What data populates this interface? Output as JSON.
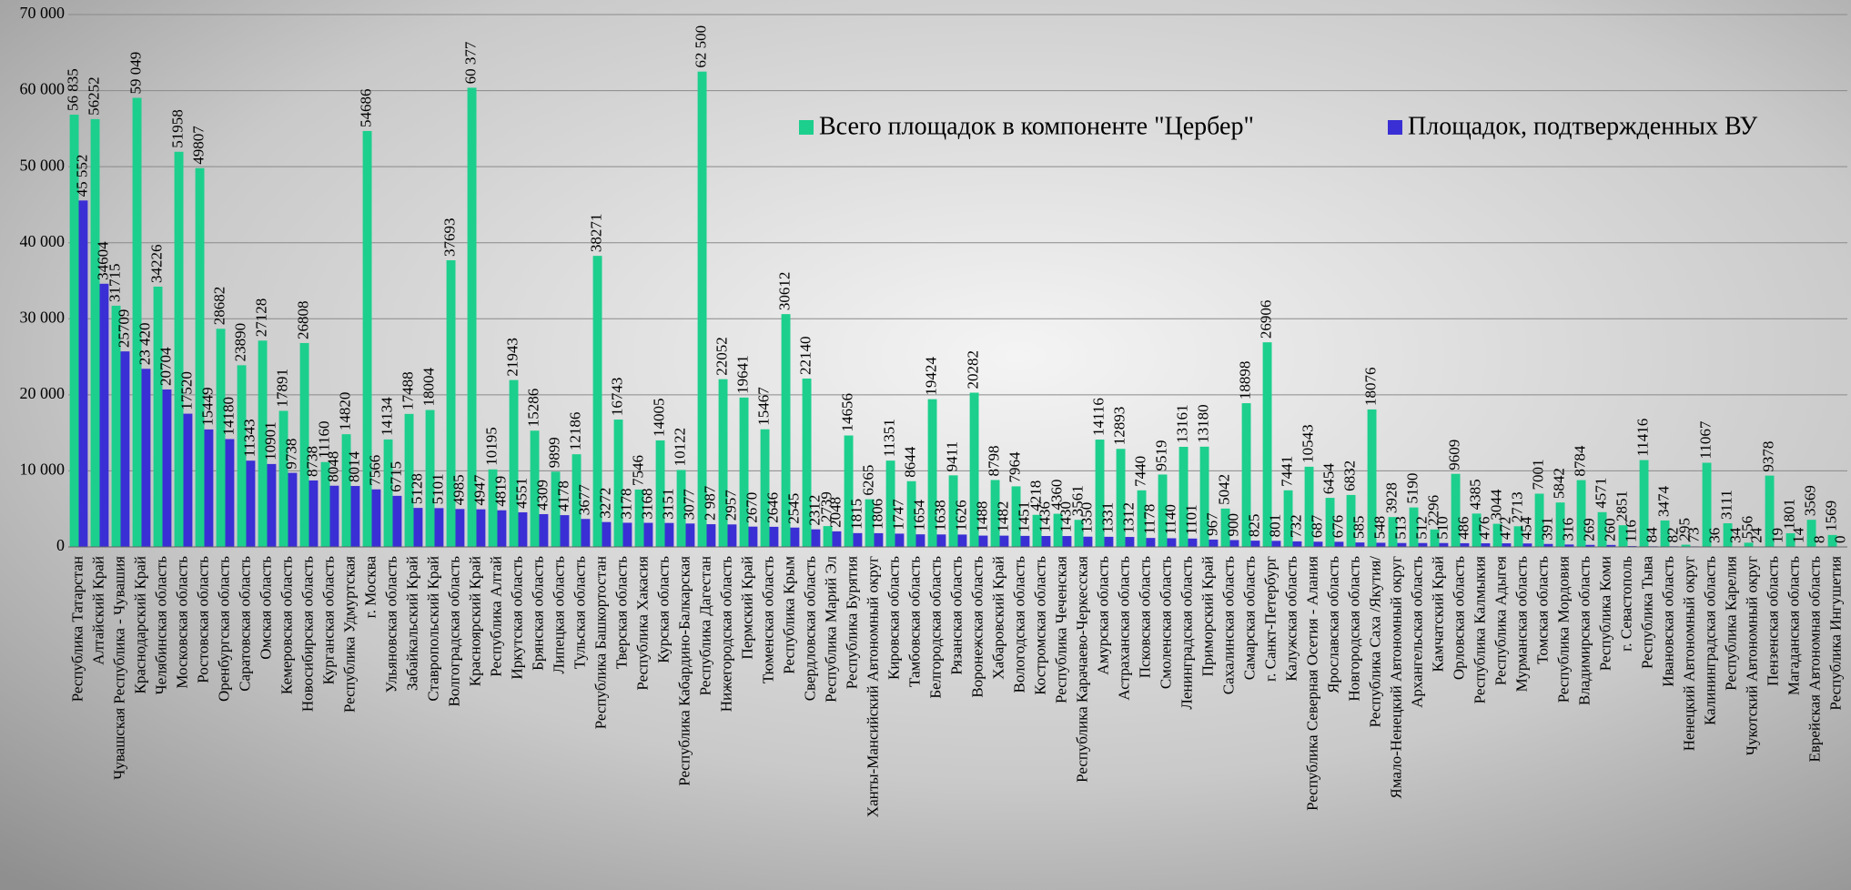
{
  "chart_data": {
    "type": "bar",
    "categories": [
      "Республика Татарстан",
      "Алтайский Край",
      "Чувашская Республика - Чувашия",
      "Краснодарский Край",
      "Челябинская область",
      "Московская область",
      "Ростовская область",
      "Оренбургская область",
      "Саратовская область",
      "Омская область",
      "Кемеровская область",
      "Новосибирская область",
      "Курганская область",
      "Республика Удмуртская",
      "г. Москва",
      "Ульяновская область",
      "Забайкальский Край",
      "Ставропольский Край",
      "Волгоградская область",
      "Красноярский Край",
      "Республика Алтай",
      "Иркутская область",
      "Брянская область",
      "Липецкая область",
      "Тульская область",
      "Республика Башкортостан",
      "Тверская область",
      "Республика Хакасия",
      "Курская область",
      "Республика Кабардино-Балкарская",
      "Республика Дагестан",
      "Нижегородская область",
      "Пермский Край",
      "Тюменская область",
      "Республика Крым",
      "Свердловская область",
      "Республика Марий Эл",
      "Республика Бурятия",
      "Ханты-Мансийский Автономный округ",
      "Кировская область",
      "Тамбовская область",
      "Белгородская область",
      "Рязанская область",
      "Воронежская область",
      "Хабаровский Край",
      "Вологодская область",
      "Костромская область",
      "Республика Чеченская",
      "Республика Карачаево-Черкесская",
      "Амурская область",
      "Астраханская область",
      "Псковская область",
      "Смоленская область",
      "Ленинградская область",
      "Приморский Край",
      "Сахалинская область",
      "Самарская область",
      "г. Санкт-Петербург",
      "Калужская область",
      "Республика Северная Осетия - Алания",
      "Ярославская область",
      "Новгородская область",
      "Республика Саха /Якутия/",
      "Ямало-Ненецкий Автономный округ",
      "Архангельская область",
      "Камчатский Край",
      "Орловская область",
      "Республика Калмыкия",
      "Республика Адыгея",
      "Мурманская область",
      "Томская область",
      "Республика Мордовия",
      "Владимирская область",
      "Республика Коми",
      "г. Севастополь",
      "Республика Тыва",
      "Ивановская область",
      "Ненецкий Автономный округ",
      "Калининградская область",
      "Республика Карелия",
      "Чукотский Автономный округ",
      "Пензенская область",
      "Магаданская область",
      "Еврейская Автономная область",
      "Республика Ингушетия"
    ],
    "series": [
      {
        "name": "Всего площадок в компоненте \"Цербер\"",
        "color": "#1ccf8d",
        "values": [
          56835,
          56252,
          31715,
          59049,
          34226,
          51958,
          49807,
          28682,
          23890,
          27128,
          17891,
          26808,
          11160,
          14820,
          54686,
          14134,
          17488,
          18004,
          37693,
          60377,
          10195,
          21943,
          15286,
          9899,
          12186,
          38271,
          16743,
          7546,
          14005,
          10122,
          62500,
          22052,
          19641,
          15467,
          30612,
          22140,
          2739,
          14656,
          6265,
          11351,
          8644,
          19424,
          9411,
          20282,
          8798,
          7964,
          4218,
          4360,
          3561,
          14116,
          12893,
          7440,
          9519,
          13161,
          13180,
          5042,
          18898,
          26906,
          7441,
          10543,
          6454,
          6832,
          18076,
          3928,
          5190,
          2296,
          9609,
          4385,
          3044,
          2713,
          7001,
          5842,
          8784,
          4571,
          2851,
          11416,
          3474,
          295,
          11067,
          3111,
          556,
          9378,
          1801,
          3569,
          1569
        ],
        "value_labels": [
          "56 835",
          "56252",
          "31715",
          "59 049",
          "34226",
          "51958",
          "49807",
          "28682",
          "23890",
          "27128",
          "17891",
          "26808",
          "11160",
          "14820",
          "54686",
          "14134",
          "17488",
          "18004",
          "37693",
          "60 377",
          "10195",
          "21943",
          "15286",
          "9899",
          "12186",
          "38271",
          "16743",
          "7546",
          "14005",
          "10122",
          "62 500",
          "22052",
          "19641",
          "15467",
          "30612",
          "22140",
          "2739",
          "14656",
          "6265",
          "11351",
          "8644",
          "19424",
          "9411",
          "20282",
          "8798",
          "7964",
          "4218",
          "4360",
          "3561",
          "14116",
          "12893",
          "7440",
          "9519",
          "13161",
          "13180",
          "5042",
          "18898",
          "26906",
          "7441",
          "10543",
          "6454",
          "6832",
          "18076",
          "3928",
          "5190",
          "2296",
          "9609",
          "4385",
          "3044",
          "2713",
          "7001",
          "5842",
          "8784",
          "4571",
          "2851",
          "11416",
          "3474",
          "295",
          "11067",
          "3111",
          "556",
          "9378",
          "1801",
          "3569",
          "1569"
        ]
      },
      {
        "name": "Площадок, подтвержденных ВУ",
        "color": "#3a2fd4",
        "values": [
          45552,
          34604,
          25709,
          23420,
          20704,
          17520,
          15449,
          14180,
          11343,
          10901,
          9738,
          8738,
          8048,
          8014,
          7566,
          6715,
          5128,
          5101,
          4985,
          4947,
          4819,
          4551,
          4309,
          4178,
          3677,
          3272,
          3178,
          3168,
          3151,
          3077,
          2987,
          2957,
          2670,
          2646,
          2545,
          2312,
          2048,
          1815,
          1806,
          1747,
          1654,
          1638,
          1626,
          1488,
          1482,
          1451,
          1436,
          1430,
          1350,
          1331,
          1312,
          1178,
          1140,
          1101,
          967,
          900,
          825,
          801,
          732,
          687,
          676,
          585,
          548,
          513,
          512,
          510,
          486,
          476,
          472,
          454,
          391,
          316,
          269,
          260,
          116,
          84,
          82,
          73,
          36,
          34,
          24,
          19,
          14,
          8,
          0
        ],
        "value_labels": [
          "45 552",
          "34604",
          "25709",
          "23 420",
          "20704",
          "17520",
          "15449",
          "14180",
          "11343",
          "10901",
          "9738",
          "8738",
          "8048",
          "8014",
          "7566",
          "6715",
          "5128",
          "5101",
          "4985",
          "4947",
          "4819",
          "4551",
          "4309",
          "4178",
          "3677",
          "3272",
          "3178",
          "3168",
          "3151",
          "3077",
          "2 987",
          "2957",
          "2670",
          "2646",
          "2545",
          "2312",
          "2048",
          "1815",
          "1806",
          "1747",
          "1654",
          "1638",
          "1626",
          "1488",
          "1482",
          "1451",
          "1436",
          "1430",
          "1350",
          "1331",
          "1312",
          "1178",
          "1140",
          "1101",
          "967",
          "900",
          "825",
          "801",
          "732",
          "687",
          "676",
          "585",
          "548",
          "513",
          "512",
          "510",
          "486",
          "476",
          "472",
          "454",
          "391",
          "316",
          "269",
          "260",
          "116",
          "84",
          "82",
          "73",
          "36",
          "34",
          "24",
          "19",
          "14",
          "8",
          "0"
        ]
      }
    ],
    "ylim": [
      0,
      70000
    ],
    "yticks": [
      0,
      {
        "value": 10000,
        "label": "10 000"
      },
      {
        "value": 20000,
        "label": "20 000"
      },
      {
        "value": 30000,
        "label": "30 000"
      },
      {
        "value": 40000,
        "label": "40 000"
      },
      {
        "value": 50000,
        "label": "50 000"
      },
      {
        "value": 60000,
        "label": "60 000"
      },
      {
        "value": 70000,
        "label": "70 000"
      }
    ],
    "grid": true
  }
}
